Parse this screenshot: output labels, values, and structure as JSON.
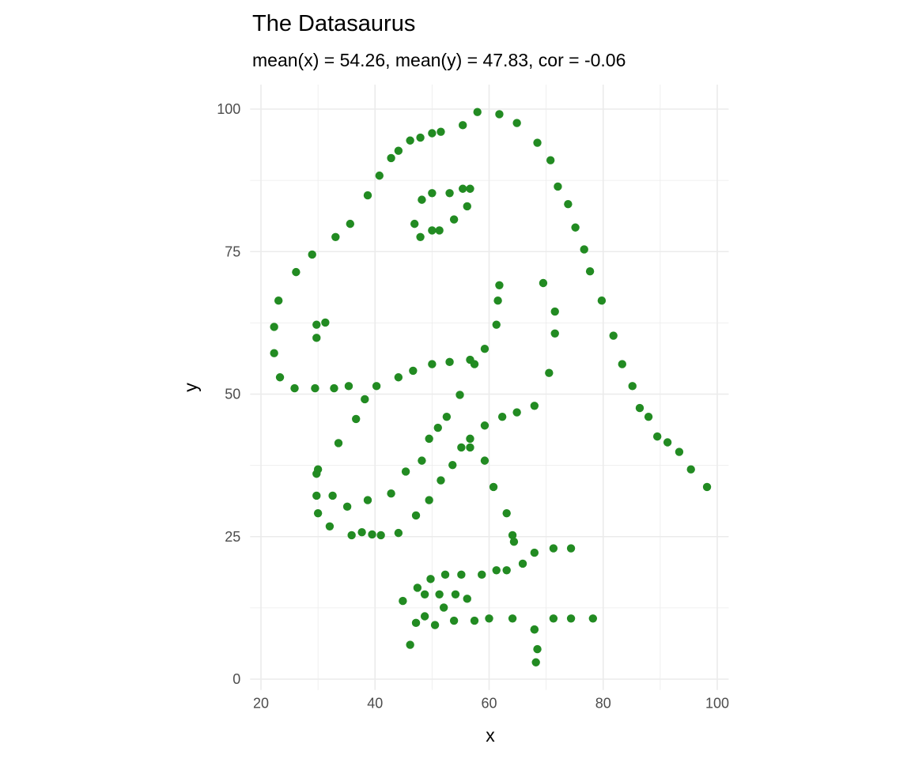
{
  "chart_data": {
    "type": "scatter",
    "title": "The Datasaurus",
    "subtitle": "mean(x) = 54.26, mean(y) = 47.83, cor = -0.06",
    "xlabel": "x",
    "ylabel": "y",
    "xlim": [
      18.1,
      102.0
    ],
    "ylim": [
      -1.9,
      104.3
    ],
    "xticks": [
      20,
      40,
      60,
      80,
      100
    ],
    "yticks": [
      0,
      25,
      50,
      75,
      100
    ],
    "grid": true,
    "point_color": "#228B22",
    "points": [
      [
        55.3846,
        97.1795
      ],
      [
        51.5385,
        96.0256
      ],
      [
        46.1538,
        94.4872
      ],
      [
        42.8205,
        91.4103
      ],
      [
        40.7692,
        88.3333
      ],
      [
        38.7179,
        84.8718
      ],
      [
        35.641,
        79.8718
      ],
      [
        33.0769,
        77.5641
      ],
      [
        28.9744,
        74.4872
      ],
      [
        26.1538,
        71.4103
      ],
      [
        23.0769,
        66.4103
      ],
      [
        22.3077,
        61.7949
      ],
      [
        22.3077,
        57.1795
      ],
      [
        23.3333,
        52.9487
      ],
      [
        25.8974,
        51.0256
      ],
      [
        29.4872,
        51.0256
      ],
      [
        32.8205,
        51.0256
      ],
      [
        35.3846,
        51.4103
      ],
      [
        40.2564,
        51.4103
      ],
      [
        44.1026,
        52.9487
      ],
      [
        46.6667,
        54.1026
      ],
      [
        50,
        55.2564
      ],
      [
        53.0769,
        55.641
      ],
      [
        56.6667,
        56.0256
      ],
      [
        59.2308,
        57.9487
      ],
      [
        61.2821,
        62.1795
      ],
      [
        61.5385,
        66.4103
      ],
      [
        61.7949,
        69.1026
      ],
      [
        57.4359,
        55.2564
      ],
      [
        54.8718,
        49.8718
      ],
      [
        52.5641,
        46.0256
      ],
      [
        48.2051,
        38.3333
      ],
      [
        49.4872,
        42.1795
      ],
      [
        51.0256,
        44.1026
      ],
      [
        45.3846,
        36.4103
      ],
      [
        42.8205,
        32.5641
      ],
      [
        38.7179,
        31.4103
      ],
      [
        35.1282,
        30.2564
      ],
      [
        32.5641,
        32.1795
      ],
      [
        30,
        36.7949
      ],
      [
        33.5897,
        41.4103
      ],
      [
        36.6667,
        45.641
      ],
      [
        38.2051,
        49.1026
      ],
      [
        29.7436,
        36.0256
      ],
      [
        29.7436,
        32.1795
      ],
      [
        30,
        29.1026
      ],
      [
        32.0513,
        26.7949
      ],
      [
        35.8974,
        25.2564
      ],
      [
        41.0256,
        25.2564
      ],
      [
        44.1026,
        25.641
      ],
      [
        47.1795,
        28.718
      ],
      [
        49.4872,
        31.4103
      ],
      [
        51.5385,
        34.8718
      ],
      [
        53.5897,
        37.5641
      ],
      [
        55.1282,
        40.641
      ],
      [
        56.6667,
        42.1795
      ],
      [
        59.2308,
        44.4872
      ],
      [
        62.3077,
        46.0256
      ],
      [
        64.8718,
        46.7949
      ],
      [
        67.9487,
        47.9487
      ],
      [
        70.5128,
        53.718
      ],
      [
        71.5385,
        60.641
      ],
      [
        71.5385,
        64.4872
      ],
      [
        69.4872,
        69.4872
      ],
      [
        46.9231,
        79.8718
      ],
      [
        48.2051,
        84.1026
      ],
      [
        50,
        85.2564
      ],
      [
        53.0769,
        85.2564
      ],
      [
        55.3846,
        86.0256
      ],
      [
        56.6667,
        86.0256
      ],
      [
        56.1538,
        82.9487
      ],
      [
        53.8462,
        80.641
      ],
      [
        51.2821,
        78.718
      ],
      [
        50,
        78.718
      ],
      [
        47.9487,
        77.5641
      ],
      [
        29.7436,
        59.8718
      ],
      [
        29.7436,
        62.1795
      ],
      [
        31.2821,
        62.5641
      ],
      [
        57.9487,
        99.4872
      ],
      [
        61.7949,
        99.1026
      ],
      [
        64.8718,
        97.5641
      ],
      [
        68.4615,
        94.1026
      ],
      [
        70.7692,
        91.0256
      ],
      [
        72.0513,
        86.4103
      ],
      [
        73.8462,
        83.3333
      ],
      [
        75.1282,
        79.2308
      ],
      [
        76.6667,
        75.3846
      ],
      [
        77.6923,
        71.5385
      ],
      [
        79.7436,
        66.4103
      ],
      [
        81.7949,
        60.2564
      ],
      [
        83.3333,
        55.2564
      ],
      [
        85.1282,
        51.4103
      ],
      [
        86.4103,
        47.5641
      ],
      [
        87.9487,
        46.0256
      ],
      [
        89.4872,
        42.5641
      ],
      [
        93.3333,
        39.8718
      ],
      [
        95.3846,
        36.7949
      ],
      [
        98.2051,
        33.718
      ],
      [
        56.6667,
        40.641
      ],
      [
        59.2308,
        38.3333
      ],
      [
        60.7692,
        33.718
      ],
      [
        63.0769,
        29.1026
      ],
      [
        64.1026,
        25.2564
      ],
      [
        64.359,
        24.1026
      ],
      [
        74.359,
        22.9487
      ],
      [
        71.2821,
        22.9487
      ],
      [
        67.9487,
        22.1795
      ],
      [
        65.8974,
        20.2564
      ],
      [
        63.0769,
        19.1026
      ],
      [
        61.2821,
        19.1026
      ],
      [
        58.7179,
        18.3333
      ],
      [
        55.1282,
        18.3333
      ],
      [
        52.3077,
        18.3333
      ],
      [
        49.7436,
        17.5641
      ],
      [
        47.4359,
        16.0256
      ],
      [
        44.8718,
        13.7179
      ],
      [
        48.7179,
        14.8718
      ],
      [
        51.2821,
        14.8718
      ],
      [
        54.1026,
        14.8718
      ],
      [
        56.1538,
        14.1026
      ],
      [
        52.0513,
        12.5641
      ],
      [
        48.7179,
        11.0256
      ],
      [
        47.1795,
        9.8718
      ],
      [
        46.1538,
        6.0256
      ],
      [
        50.5128,
        9.4872
      ],
      [
        53.8462,
        10.2564
      ],
      [
        57.4359,
        10.2564
      ],
      [
        60,
        10.641
      ],
      [
        64.1026,
        10.641
      ],
      [
        67.9487,
        8.718
      ],
      [
        71.2821,
        10.641
      ],
      [
        74.359,
        10.641
      ],
      [
        78.2051,
        10.641
      ],
      [
        67.9487,
        8.718
      ],
      [
        68.4615,
        5.2564
      ],
      [
        68.2051,
        2.9487
      ],
      [
        37.6923,
        25.7692
      ],
      [
        39.4872,
        25.3846
      ],
      [
        91.2821,
        41.5385
      ],
      [
        50,
        95.7692
      ],
      [
        47.9487,
        95
      ],
      [
        44.1026,
        92.6923
      ]
    ]
  }
}
